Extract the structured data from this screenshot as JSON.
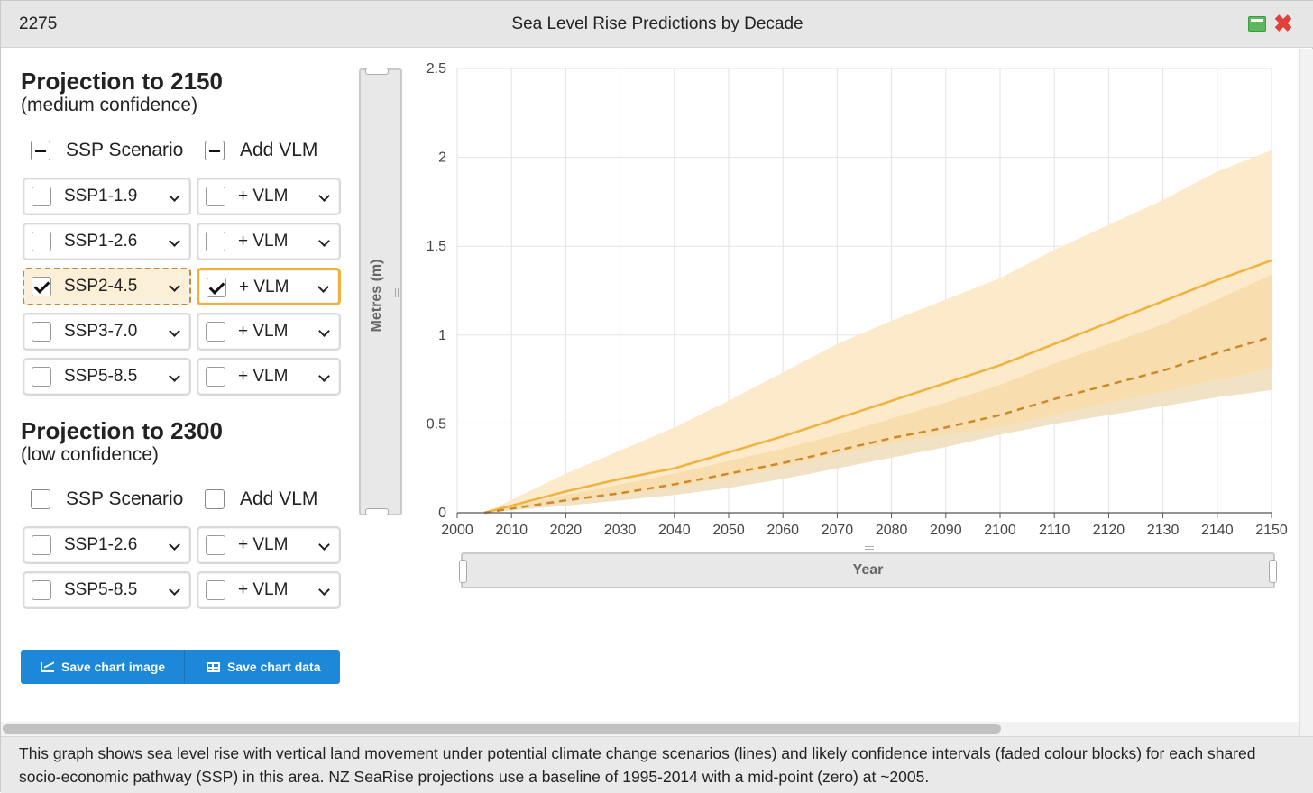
{
  "window": {
    "id_label": "2275",
    "title": "Sea Level Rise Predictions by Decade",
    "minimize_icon": "minimize-icon",
    "close_icon": "close-icon",
    "close_glyph": "✖"
  },
  "panel_2150": {
    "title": "Projection to 2150",
    "subtitle": "(medium confidence)",
    "ssp_header": "SSP Scenario",
    "vlm_header": "Add VLM",
    "ssp_header_state": "indeterminate",
    "vlm_header_state": "indeterminate",
    "rows": [
      {
        "ssp": "SSP1-1.9",
        "vlm": "+ VLM",
        "ssp_checked": false,
        "vlm_checked": false
      },
      {
        "ssp": "SSP1-2.6",
        "vlm": "+ VLM",
        "ssp_checked": false,
        "vlm_checked": false
      },
      {
        "ssp": "SSP2-4.5",
        "vlm": "+ VLM",
        "ssp_checked": true,
        "vlm_checked": true
      },
      {
        "ssp": "SSP3-7.0",
        "vlm": "+ VLM",
        "ssp_checked": false,
        "vlm_checked": false
      },
      {
        "ssp": "SSP5-8.5",
        "vlm": "+ VLM",
        "ssp_checked": false,
        "vlm_checked": false
      }
    ]
  },
  "panel_2300": {
    "title": "Projection to 2300",
    "subtitle": "(low confidence)",
    "ssp_header": "SSP Scenario",
    "vlm_header": "Add VLM",
    "ssp_header_state": "unchecked",
    "vlm_header_state": "unchecked",
    "rows": [
      {
        "ssp": "SSP1-2.6",
        "vlm": "+ VLM",
        "ssp_checked": false,
        "vlm_checked": false
      },
      {
        "ssp": "SSP5-8.5",
        "vlm": "+ VLM",
        "ssp_checked": false,
        "vlm_checked": false
      }
    ]
  },
  "buttons": {
    "save_image": "Save chart image",
    "save_data": "Save chart data",
    "save_image_icon": "line-chart-icon",
    "save_data_icon": "table-icon",
    "color": "#1e88d8"
  },
  "sliders": {
    "y_title": "Metres (m)",
    "x_title": "Year"
  },
  "chart_data": {
    "type": "line",
    "title": "",
    "xlabel": "Year",
    "ylabel": "Metres (m)",
    "xlim": [
      2000,
      2150
    ],
    "ylim": [
      0,
      2.5
    ],
    "x_ticks": [
      "2000",
      "2010",
      "2020",
      "2030",
      "2040",
      "2050",
      "2060",
      "2070",
      "2080",
      "2090",
      "2100",
      "2110",
      "2120",
      "2130",
      "2140",
      "2150"
    ],
    "y_ticks": [
      "0",
      "0.5",
      "1",
      "1.5",
      "2",
      "2.5"
    ],
    "grid": true,
    "x": [
      2005,
      2020,
      2030,
      2040,
      2050,
      2060,
      2070,
      2080,
      2090,
      2100,
      2110,
      2120,
      2130,
      2140,
      2150
    ],
    "series": [
      {
        "style": "solid",
        "color": "#f0b23e",
        "values": [
          0,
          0.12,
          0.19,
          0.25,
          0.34,
          0.43,
          0.53,
          0.63,
          0.73,
          0.83,
          0.95,
          1.07,
          1.19,
          1.31,
          1.42
        ],
        "band_lower": [
          0,
          0.06,
          0.1,
          0.14,
          0.2,
          0.26,
          0.33,
          0.39,
          0.44,
          0.48,
          0.55,
          0.62,
          0.68,
          0.75,
          0.81
        ],
        "band_upper": [
          0,
          0.22,
          0.35,
          0.48,
          0.63,
          0.79,
          0.95,
          1.08,
          1.2,
          1.32,
          1.48,
          1.62,
          1.76,
          1.92,
          2.04
        ]
      },
      {
        "style": "dashed",
        "color": "#c98a2e",
        "values": [
          0,
          0.07,
          0.11,
          0.16,
          0.22,
          0.28,
          0.35,
          0.42,
          0.48,
          0.55,
          0.64,
          0.72,
          0.8,
          0.9,
          0.99
        ],
        "band_lower": [
          0,
          0.04,
          0.07,
          0.1,
          0.14,
          0.19,
          0.25,
          0.31,
          0.37,
          0.44,
          0.5,
          0.55,
          0.6,
          0.65,
          0.69
        ],
        "band_upper": [
          0,
          0.1,
          0.16,
          0.22,
          0.29,
          0.36,
          0.44,
          0.53,
          0.62,
          0.72,
          0.84,
          0.95,
          1.06,
          1.2,
          1.34
        ]
      }
    ],
    "band_colors": {
      "outer": "#fde9c7",
      "inner": "#f5d9a5",
      "low_fade": "#efe1cc"
    }
  },
  "footer": {
    "text": "This graph shows sea level rise with vertical land movement under potential climate change scenarios (lines) and likely confidence intervals (faded colour blocks) for each shared socio-economic pathway (SSP) in this area. NZ SeaRise projections use a baseline of 1995-2014 with a mid-point (zero) at ~2005."
  }
}
